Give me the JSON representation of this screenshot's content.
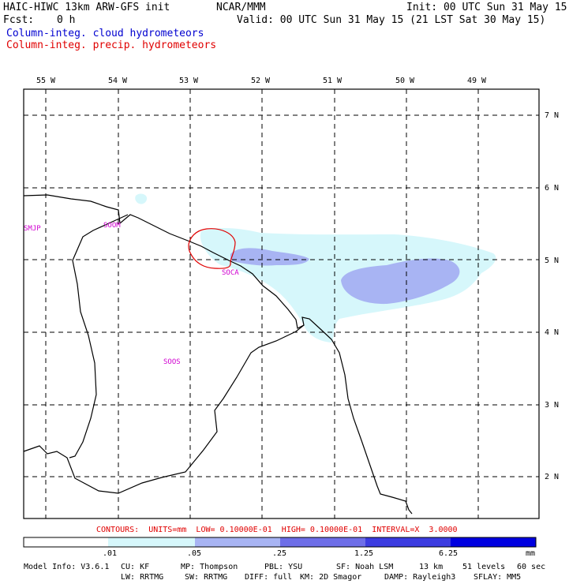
{
  "header": {
    "model_title": "HAIC-HIWC 13km ARW-GFS init",
    "org": "NCAR/MMM",
    "init": "Init: 00 UTC Sun 31 May 15",
    "fcst_label": "Fcst:",
    "fcst_value": "0 h",
    "valid": "Valid: 00 UTC Sun 31 May 15 (21 LST Sat 30 May 15)",
    "field1": "Column-integ. cloud hydrometeors",
    "field2": "Column-integ. precip. hydrometeors"
  },
  "colors": {
    "field1": "#0000d0",
    "field2": "#e00000",
    "shade": [
      "#ffffff",
      "#d6f7fb",
      "#a8b4f3",
      "#6e6ee8",
      "#3c3ce0",
      "#0000e0"
    ]
  },
  "map": {
    "lon_labels": [
      "55 W",
      "54 W",
      "53 W",
      "52 W",
      "51 W",
      "50 W",
      "49 W"
    ],
    "lat_labels": [
      "7 N",
      "6 N",
      "5 N",
      "4 N",
      "3 N",
      "2 N"
    ],
    "stations": [
      "SMJP",
      "SOOM",
      "SOCA",
      "SOOS"
    ]
  },
  "contours": "CONTOURS:  UNITS=mm  LOW= 0.10000E-01  HIGH= 0.10000E-01  INTERVAL=X  3.0000",
  "colorbar": {
    "ticks": [
      ".01",
      ".05",
      ".25",
      "1.25",
      "6.25"
    ],
    "unit": "mm"
  },
  "footer": {
    "line1": [
      "Model Info: V3.6.1",
      "CU: KF",
      "MP: Thompson",
      "PBL: YSU",
      "SF: Noah LSM",
      "13 km",
      "51 levels",
      "60 sec"
    ],
    "line2": [
      "LW: RRTMG",
      "SW: RRTMG",
      "DIFF: full",
      "KM: 2D Smagor",
      "DAMP: Rayleigh3",
      "SFLAY: MM5"
    ]
  }
}
